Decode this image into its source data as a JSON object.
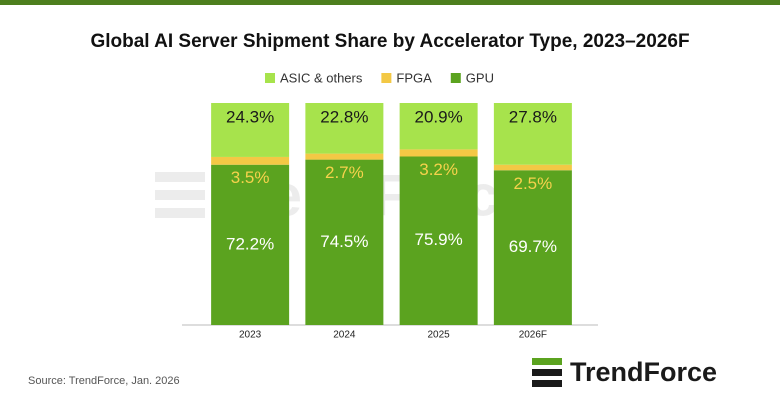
{
  "chart_data": {
    "type": "stacked_bar",
    "title": "Global AI Server Shipment Share by Accelerator Type, 2023–2026F",
    "categories": [
      "2023",
      "2024",
      "2025",
      "2026F"
    ],
    "series": [
      {
        "name": "GPU",
        "color": "#5ba31f",
        "label_color": "#ffffff",
        "values": [
          72.2,
          74.5,
          75.9,
          69.7
        ],
        "value_labels": [
          "72.2%",
          "74.5%",
          "75.9%",
          "69.7%"
        ]
      },
      {
        "name": "FPGA",
        "color": "#f3c845",
        "label_color": "#f6d24c",
        "values": [
          3.5,
          2.7,
          3.2,
          2.5
        ],
        "value_labels": [
          "3.5%",
          "2.7%",
          "3.2%",
          "2.5%"
        ]
      },
      {
        "name": "ASIC & others",
        "color": "#a7e34c",
        "label_color": "#1a1a1a",
        "values": [
          24.3,
          22.8,
          20.9,
          27.8
        ],
        "value_labels": [
          "24.3%",
          "22.8%",
          "20.9%",
          "27.8%"
        ]
      }
    ],
    "source": "Source: TrendForce, Jan. 2026",
    "brand": "TrendForce"
  }
}
